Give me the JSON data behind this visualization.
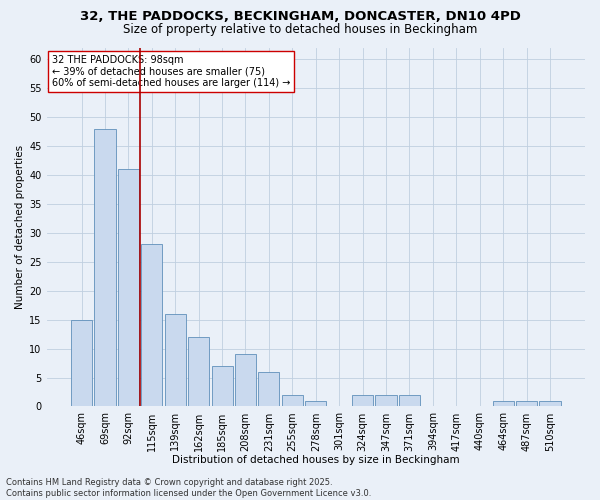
{
  "title_line1": "32, THE PADDOCKS, BECKINGHAM, DONCASTER, DN10 4PD",
  "title_line2": "Size of property relative to detached houses in Beckingham",
  "xlabel": "Distribution of detached houses by size in Beckingham",
  "ylabel": "Number of detached properties",
  "categories": [
    "46sqm",
    "69sqm",
    "92sqm",
    "115sqm",
    "139sqm",
    "162sqm",
    "185sqm",
    "208sqm",
    "231sqm",
    "255sqm",
    "278sqm",
    "301sqm",
    "324sqm",
    "347sqm",
    "371sqm",
    "394sqm",
    "417sqm",
    "440sqm",
    "464sqm",
    "487sqm",
    "510sqm"
  ],
  "values": [
    15,
    48,
    41,
    28,
    16,
    12,
    7,
    9,
    6,
    2,
    1,
    0,
    2,
    2,
    2,
    0,
    0,
    0,
    1,
    1,
    1
  ],
  "bar_color": "#c9d9ee",
  "bar_edge_color": "#6090bb",
  "grid_color": "#c0cfe0",
  "background_color": "#eaf0f8",
  "vline_x": 2.5,
  "vline_color": "#aa0000",
  "annotation_text": "32 THE PADDOCKS: 98sqm\n← 39% of detached houses are smaller (75)\n60% of semi-detached houses are larger (114) →",
  "annotation_box_color": "#ffffff",
  "annotation_box_edge": "#cc0000",
  "ylim": [
    0,
    62
  ],
  "yticks": [
    0,
    5,
    10,
    15,
    20,
    25,
    30,
    35,
    40,
    45,
    50,
    55,
    60
  ],
  "footer_line1": "Contains HM Land Registry data © Crown copyright and database right 2025.",
  "footer_line2": "Contains public sector information licensed under the Open Government Licence v3.0.",
  "title_fontsize": 9.5,
  "subtitle_fontsize": 8.5,
  "axis_label_fontsize": 7.5,
  "tick_fontsize": 7,
  "annotation_fontsize": 7,
  "footer_fontsize": 6
}
